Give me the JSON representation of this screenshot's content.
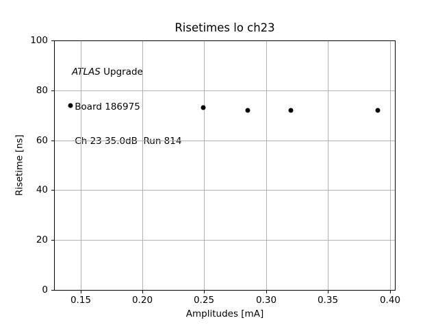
{
  "chart_data": {
    "type": "scatter",
    "title": "Risetimes lo ch23",
    "xlabel": "Amplitudes [mA]",
    "ylabel": "Risetime [ns]",
    "xlim": [
      0.1286,
      0.4046
    ],
    "ylim": [
      0,
      100
    ],
    "xticks": [
      0.15,
      0.2,
      0.25,
      0.3,
      0.35,
      0.4
    ],
    "xtick_labels": [
      "0.15",
      "0.20",
      "0.25",
      "0.30",
      "0.35",
      "0.40"
    ],
    "yticks": [
      0,
      20,
      40,
      60,
      80,
      100
    ],
    "ytick_labels": [
      "0",
      "20",
      "40",
      "60",
      "80",
      "100"
    ],
    "grid": true,
    "legend": "none",
    "series": [
      {
        "name": "risetimes",
        "marker": "dot",
        "marker_size_px": 7,
        "color": "#000000",
        "x": [
          0.142,
          0.249,
          0.285,
          0.32,
          0.39
        ],
        "y": [
          74.0,
          73.0,
          72.1,
          72.1,
          72.1
        ]
      }
    ],
    "annotation_lines": [
      {
        "italic": "ATLAS",
        "text": " Upgrade"
      },
      {
        "italic": "",
        "text": " Board 186975"
      },
      {
        "italic": "",
        "text": " Ch 23 35.0dB  Run 814"
      }
    ],
    "colors": {
      "background": "#ffffff",
      "grid": "#b0b0b0",
      "spine": "#000000",
      "text": "#000000",
      "marker": "#000000"
    }
  }
}
